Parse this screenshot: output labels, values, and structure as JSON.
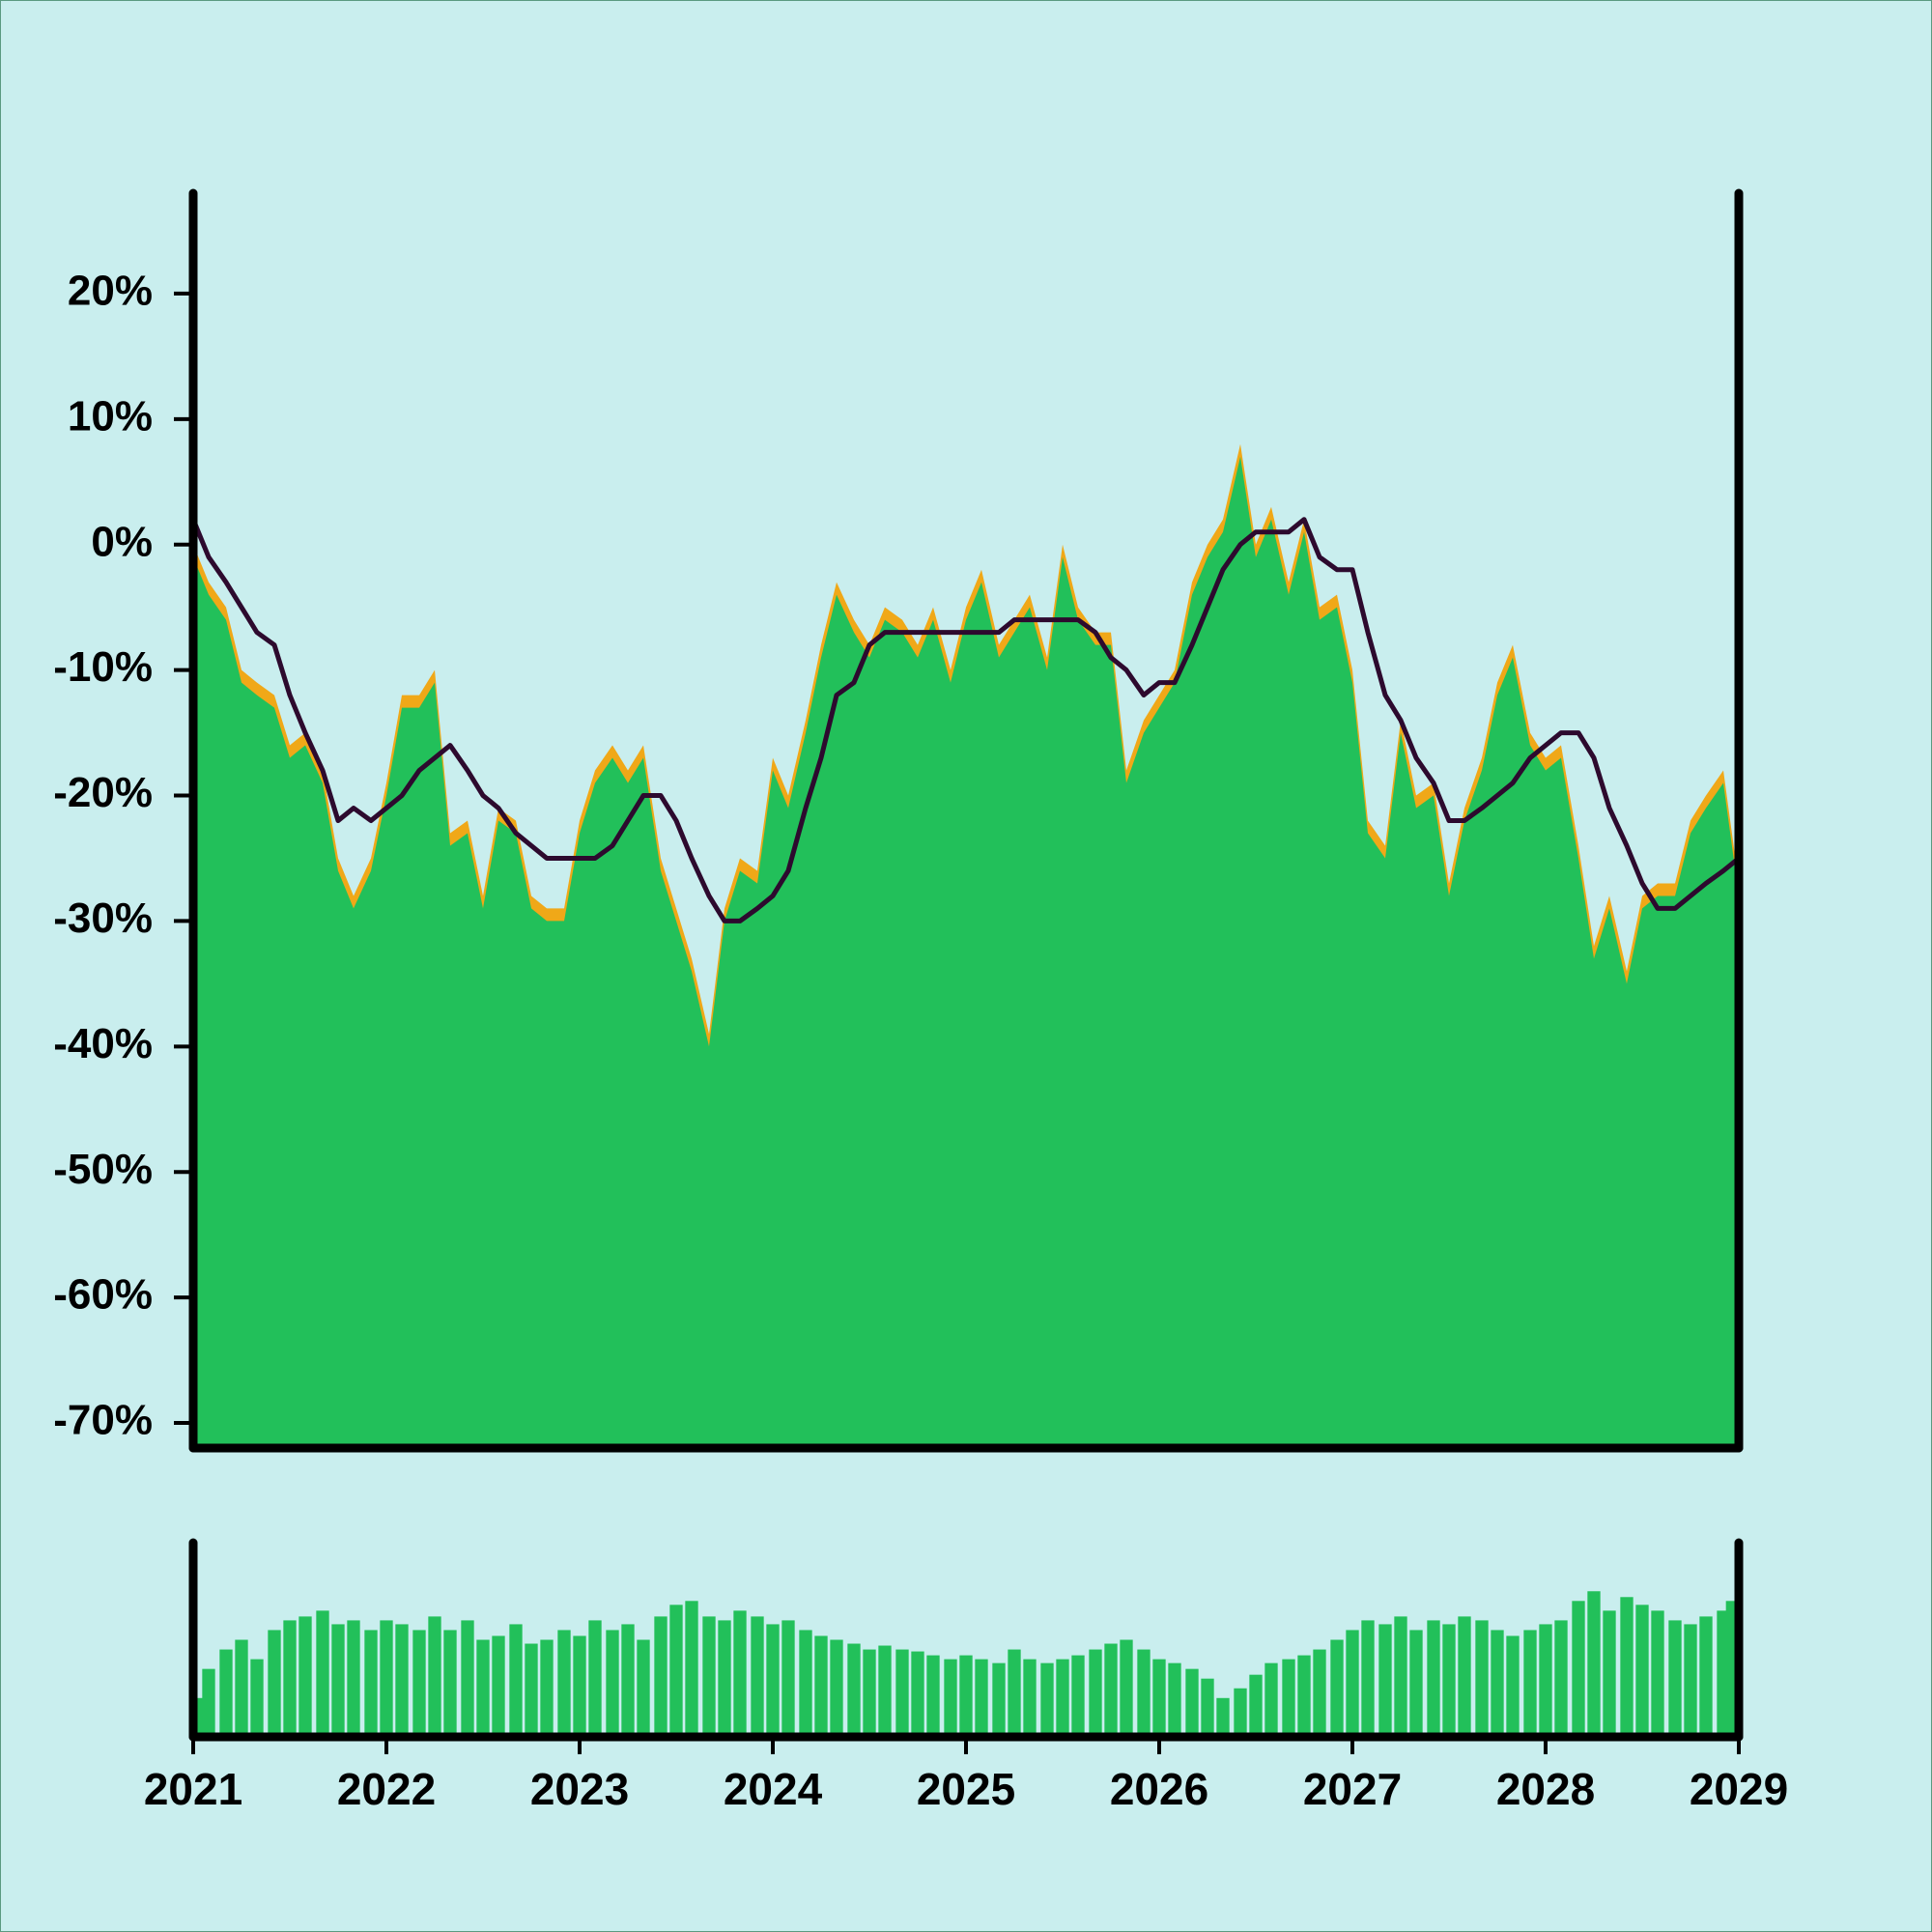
{
  "chart_data": [
    {
      "type": "area",
      "x": [
        2021,
        2021.08,
        2021.17,
        2021.25,
        2021.33,
        2021.42,
        2021.5,
        2021.58,
        2021.67,
        2021.75,
        2021.83,
        2021.92,
        2022,
        2022.08,
        2022.17,
        2022.25,
        2022.33,
        2022.42,
        2022.5,
        2022.58,
        2022.67,
        2022.75,
        2022.83,
        2022.92,
        2023,
        2023.08,
        2023.17,
        2023.25,
        2023.33,
        2023.42,
        2023.5,
        2023.58,
        2023.67,
        2023.75,
        2023.83,
        2023.92,
        2024,
        2024.08,
        2024.17,
        2024.25,
        2024.33,
        2024.42,
        2024.5,
        2024.58,
        2024.67,
        2024.75,
        2024.83,
        2024.92,
        2025,
        2025.08,
        2025.17,
        2025.25,
        2025.33,
        2025.42,
        2025.5,
        2025.58,
        2025.67,
        2025.75,
        2025.83,
        2025.92,
        2026,
        2026.08,
        2026.17,
        2026.25,
        2026.33,
        2026.42,
        2026.5,
        2026.58,
        2026.67,
        2026.75,
        2026.83,
        2026.92,
        2027,
        2027.08,
        2027.17,
        2027.25,
        2027.33,
        2027.42,
        2027.5,
        2027.58,
        2027.67,
        2027.75,
        2027.83,
        2027.92,
        2028,
        2028.08,
        2028.17,
        2028.25,
        2028.33,
        2028.42,
        2028.5,
        2028.58,
        2028.67,
        2028.75,
        2028.83,
        2028.92,
        2029
      ],
      "xlim": [
        2021,
        2029
      ],
      "ylim": [
        -72,
        28
      ],
      "yticks": [
        {
          "value": 20,
          "label": "20%"
        },
        {
          "value": 10,
          "label": "10%"
        },
        {
          "value": 0,
          "label": "0%"
        },
        {
          "value": -10,
          "label": "-10%"
        },
        {
          "value": -20,
          "label": "-20%"
        },
        {
          "value": -30,
          "label": "-30%"
        },
        {
          "value": -40,
          "label": "-40%"
        },
        {
          "value": -50,
          "label": "-50%"
        },
        {
          "value": -60,
          "label": "-60%"
        },
        {
          "value": -70,
          "label": "-70%"
        }
      ],
      "series": [
        {
          "type": "area",
          "color": "#f0a818",
          "values": [
            0,
            -3,
            -5,
            -10,
            -11,
            -12,
            -16,
            -15,
            -18,
            -25,
            -28,
            -25,
            -19,
            -12,
            -12,
            -10,
            -23,
            -22,
            -28,
            -21,
            -22,
            -28,
            -29,
            -29,
            -22,
            -18,
            -16,
            -18,
            -16,
            -25,
            -29,
            -33,
            -39,
            -29,
            -25,
            -26,
            -17,
            -20,
            -14,
            -8,
            -3,
            -6,
            -8,
            -5,
            -6,
            -8,
            -5,
            -10,
            -5,
            -2,
            -8,
            -6,
            -4,
            -9,
            0,
            -5,
            -7,
            -7,
            -18,
            -14,
            -12,
            -10,
            -3,
            0,
            2,
            8,
            0,
            3,
            -3,
            2,
            -5,
            -4,
            -10,
            -22,
            -24,
            -14,
            -20,
            -19,
            -27,
            -21,
            -17,
            -11,
            -8,
            -15,
            -17,
            -16,
            -24,
            -32,
            -28,
            -34,
            -28,
            -27,
            -27,
            -22,
            -20,
            -18,
            -27
          ]
        },
        {
          "type": "area",
          "color": "#22c05a",
          "values": [
            -1,
            -4,
            -6,
            -11,
            -12,
            -13,
            -17,
            -16,
            -19,
            -26,
            -29,
            -26,
            -20,
            -13,
            -13,
            -11,
            -24,
            -23,
            -29,
            -22,
            -23,
            -29,
            -30,
            -30,
            -23,
            -19,
            -17,
            -19,
            -17,
            -26,
            -30,
            -34,
            -40,
            -30,
            -26,
            -27,
            -18,
            -21,
            -15,
            -9,
            -4,
            -7,
            -9,
            -6,
            -7,
            -9,
            -6,
            -11,
            -6,
            -3,
            -9,
            -7,
            -5,
            -10,
            -1,
            -6,
            -8,
            -8,
            -19,
            -15,
            -13,
            -11,
            -4,
            -1,
            1,
            7,
            -1,
            2,
            -4,
            1,
            -6,
            -5,
            -11,
            -23,
            -25,
            -15,
            -21,
            -20,
            -28,
            -22,
            -18,
            -12,
            -9,
            -16,
            -18,
            -17,
            -25,
            -33,
            -29,
            -35,
            -29,
            -28,
            -28,
            -23,
            -21,
            -19,
            -28
          ]
        },
        {
          "type": "line",
          "color": "#2d0a2e",
          "values": [
            2,
            -1,
            -3,
            -5,
            -7,
            -8,
            -12,
            -15,
            -18,
            -22,
            -21,
            -22,
            -21,
            -20,
            -18,
            -17,
            -16,
            -18,
            -20,
            -21,
            -23,
            -24,
            -25,
            -25,
            -25,
            -25,
            -24,
            -22,
            -20,
            -20,
            -22,
            -25,
            -28,
            -30,
            -30,
            -29,
            -28,
            -26,
            -21,
            -17,
            -12,
            -11,
            -8,
            -7,
            -7,
            -7,
            -7,
            -7,
            -7,
            -7,
            -7,
            -6,
            -6,
            -6,
            -6,
            -6,
            -7,
            -9,
            -10,
            -12,
            -11,
            -11,
            -8,
            -5,
            -2,
            0,
            1,
            1,
            1,
            2,
            -1,
            -2,
            -2,
            -7,
            -12,
            -14,
            -17,
            -19,
            -22,
            -22,
            -21,
            -20,
            -19,
            -17,
            -16,
            -15,
            -15,
            -17,
            -21,
            -24,
            -27,
            -29,
            -29,
            -28,
            -27,
            -26,
            -25
          ]
        }
      ]
    },
    {
      "type": "bar",
      "color": "#22c05a",
      "x": [
        2021,
        2021.08,
        2021.17,
        2021.25,
        2021.33,
        2021.42,
        2021.5,
        2021.58,
        2021.67,
        2021.75,
        2021.83,
        2021.92,
        2022,
        2022.08,
        2022.17,
        2022.25,
        2022.33,
        2022.42,
        2022.5,
        2022.58,
        2022.67,
        2022.75,
        2022.83,
        2022.92,
        2023,
        2023.08,
        2023.17,
        2023.25,
        2023.33,
        2023.42,
        2023.5,
        2023.58,
        2023.67,
        2023.75,
        2023.83,
        2023.92,
        2024,
        2024.08,
        2024.17,
        2024.25,
        2024.33,
        2024.42,
        2024.5,
        2024.58,
        2024.67,
        2024.75,
        2024.83,
        2024.92,
        2025,
        2025.08,
        2025.17,
        2025.25,
        2025.33,
        2025.42,
        2025.5,
        2025.58,
        2025.67,
        2025.75,
        2025.83,
        2025.92,
        2026,
        2026.08,
        2026.17,
        2026.25,
        2026.33,
        2026.42,
        2026.5,
        2026.58,
        2026.67,
        2026.75,
        2026.83,
        2026.92,
        2027,
        2027.08,
        2027.17,
        2027.25,
        2027.33,
        2027.42,
        2027.5,
        2027.58,
        2027.67,
        2027.75,
        2027.83,
        2027.92,
        2028,
        2028.08,
        2028.17,
        2028.25,
        2028.33,
        2028.42,
        2028.5,
        2028.58,
        2028.67,
        2028.75,
        2028.83,
        2028.92,
        2029
      ],
      "values": [
        20,
        35,
        45,
        50,
        40,
        55,
        60,
        62,
        65,
        58,
        60,
        55,
        60,
        58,
        55,
        62,
        55,
        60,
        50,
        52,
        58,
        48,
        50,
        55,
        52,
        60,
        55,
        58,
        50,
        62,
        68,
        70,
        62,
        60,
        65,
        62,
        58,
        60,
        55,
        52,
        50,
        48,
        45,
        47,
        45,
        44,
        42,
        40,
        42,
        40,
        38,
        45,
        40,
        38,
        40,
        42,
        45,
        48,
        50,
        45,
        40,
        38,
        35,
        30,
        20,
        25,
        32,
        38,
        40,
        42,
        45,
        50,
        55,
        60,
        58,
        62,
        55,
        60,
        58,
        62,
        60,
        55,
        52,
        55,
        58,
        60,
        70,
        75,
        65,
        72,
        68,
        65,
        60,
        58,
        62,
        65,
        70
      ],
      "xlim": [
        2021,
        2029
      ],
      "xticks": [
        2021,
        2022,
        2023,
        2024,
        2025,
        2026,
        2027,
        2028,
        2029
      ],
      "ylim": [
        0,
        100
      ]
    }
  ]
}
